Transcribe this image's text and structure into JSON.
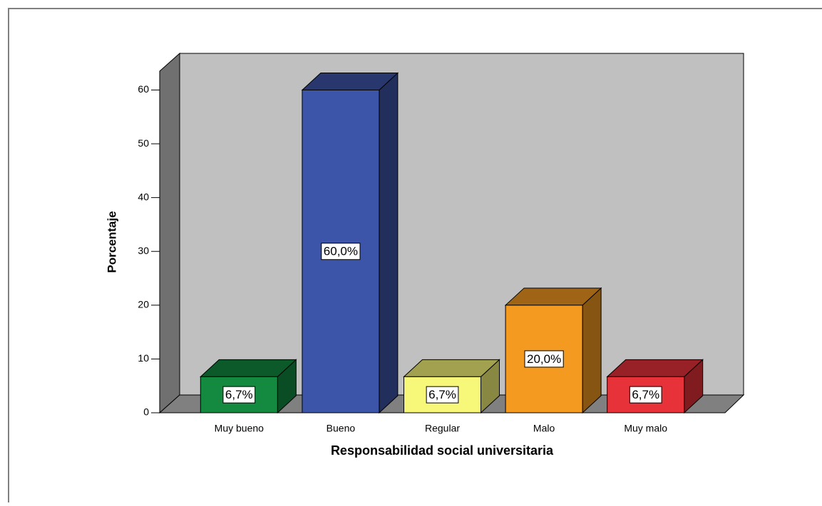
{
  "chart_data": {
    "type": "bar3d",
    "categories": [
      "Muy bueno",
      "Bueno",
      "Regular",
      "Malo",
      "Muy malo"
    ],
    "values": [
      6.7,
      60,
      6.7,
      20,
      6.7
    ],
    "value_labels": [
      "6,7%",
      "60,0%",
      "6,7%",
      "20,0%",
      "6,7%"
    ],
    "colors": [
      "#138a3f",
      "#3d55a8",
      "#f7f77a",
      "#f59a20",
      "#e8323a"
    ],
    "x_label": "Responsabilidad social universitaria",
    "y_label": "Porcentaje",
    "ylim": [
      0,
      63.5
    ],
    "yticks": [
      0,
      10,
      20,
      30,
      40,
      50,
      60
    ]
  }
}
